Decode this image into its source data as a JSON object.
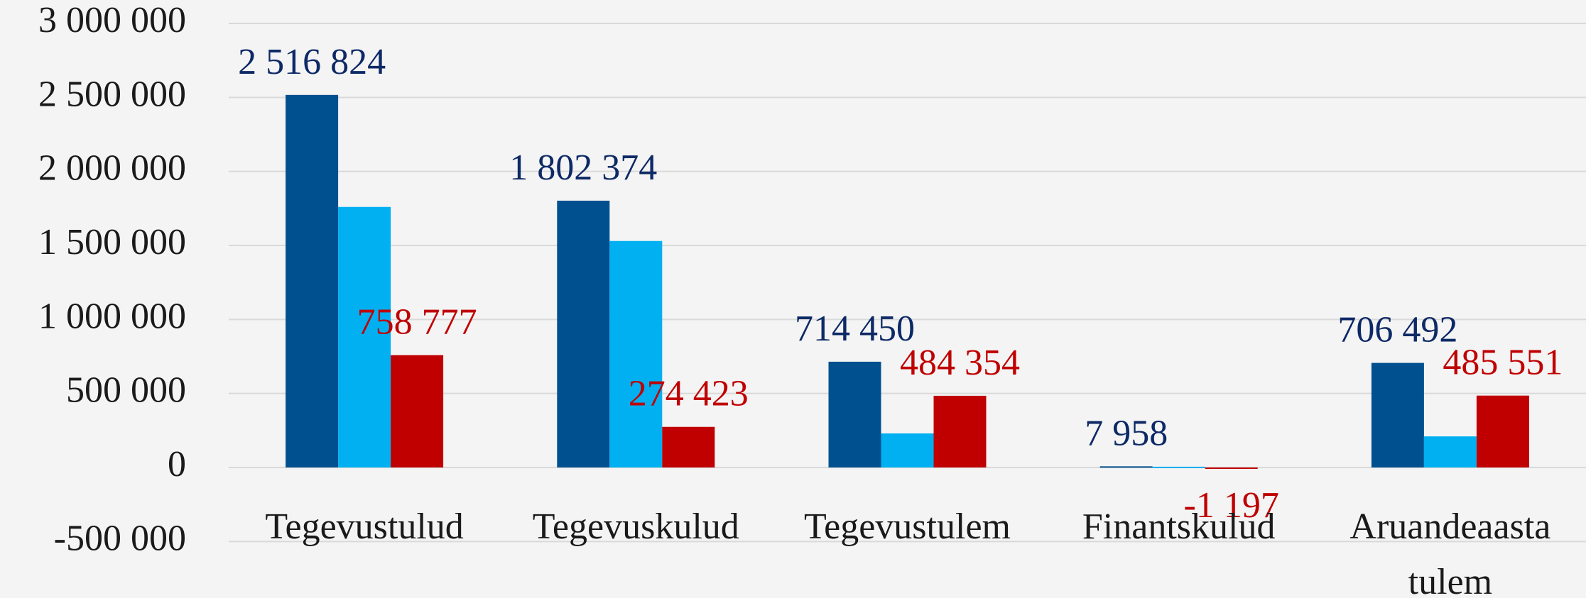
{
  "chart_data": {
    "type": "bar",
    "categories": [
      "Tegevustulud",
      "Tegevuskulud",
      "Tegevustulem",
      "Finantskulud",
      "Aruandeaasta tulem"
    ],
    "series": [
      {
        "color": "#00508f",
        "values": [
          2516824,
          1802374,
          714450,
          7958,
          706492
        ],
        "value_labels": [
          "2 516 824",
          "1 802 374",
          "714 450",
          "7 958",
          "706 492"
        ],
        "label_color": "#0e2a66"
      },
      {
        "color": "#00b0f0",
        "values": [
          1760000,
          1530000,
          230000,
          5000,
          210000
        ]
      },
      {
        "color": "#c00000",
        "values": [
          758777,
          274423,
          484354,
          -1197,
          485551
        ],
        "value_labels": [
          "758 777",
          "274 423",
          "484 354",
          "-1 197",
          "485 551"
        ],
        "label_color": "#c00000"
      }
    ],
    "ylim": [
      -500000,
      3000000
    ],
    "yticks": [
      {
        "value": -500000,
        "label": "-500 000"
      },
      0,
      {
        "value": 500000,
        "label": "500 000"
      },
      {
        "value": 1000000,
        "label": "1 000 000"
      },
      {
        "value": 1500000,
        "label": "1 500 000"
      },
      {
        "value": 2000000,
        "label": "2 000 000"
      },
      {
        "value": 2500000,
        "label": "2 500 000"
      },
      {
        "value": 3000000,
        "label": "3 000 000"
      }
    ],
    "grid": true
  }
}
